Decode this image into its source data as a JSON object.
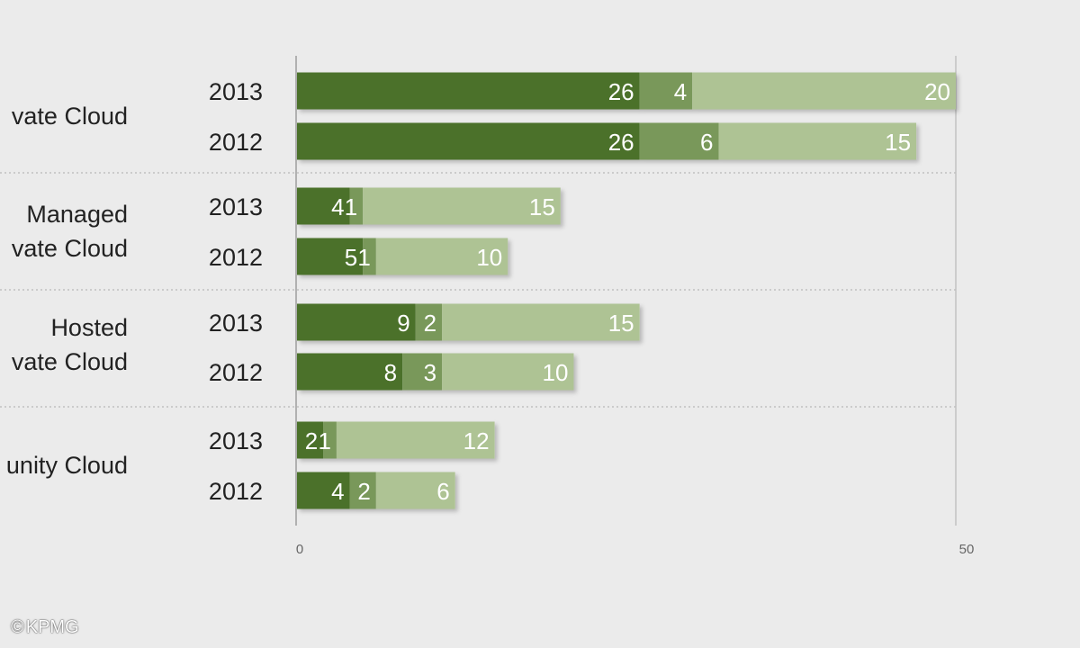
{
  "chart_data": {
    "type": "bar",
    "orientation": "horizontal",
    "stacked": true,
    "xlim": [
      0,
      50
    ],
    "x_ticks": [
      "0",
      "50"
    ],
    "grid": "vertical line at 0 and 50; dotted separators between groups",
    "groups": [
      {
        "label_lines": [
          "vate Cloud"
        ],
        "rows": [
          {
            "year": "2013",
            "values": [
              26,
              4,
              20
            ]
          },
          {
            "year": "2012",
            "values": [
              26,
              6,
              15
            ]
          }
        ]
      },
      {
        "label_lines": [
          "Managed",
          "vate Cloud"
        ],
        "rows": [
          {
            "year": "2013",
            "values": [
              4,
              1,
              15
            ]
          },
          {
            "year": "2012",
            "values": [
              5,
              1,
              10
            ]
          }
        ]
      },
      {
        "label_lines": [
          "Hosted",
          "vate Cloud"
        ],
        "rows": [
          {
            "year": "2013",
            "values": [
              9,
              2,
              15
            ]
          },
          {
            "year": "2012",
            "values": [
              8,
              3,
              10
            ]
          }
        ]
      },
      {
        "label_lines": [
          "unity Cloud"
        ],
        "rows": [
          {
            "year": "2013",
            "values": [
              2,
              1,
              12
            ]
          },
          {
            "year": "2012",
            "values": [
              4,
              2,
              6
            ]
          }
        ]
      }
    ],
    "segment_colors": [
      "#4c7129",
      "#79985a",
      "#aec394"
    ]
  },
  "copyright": {
    "symbol": "©",
    "text": "KPMG"
  }
}
